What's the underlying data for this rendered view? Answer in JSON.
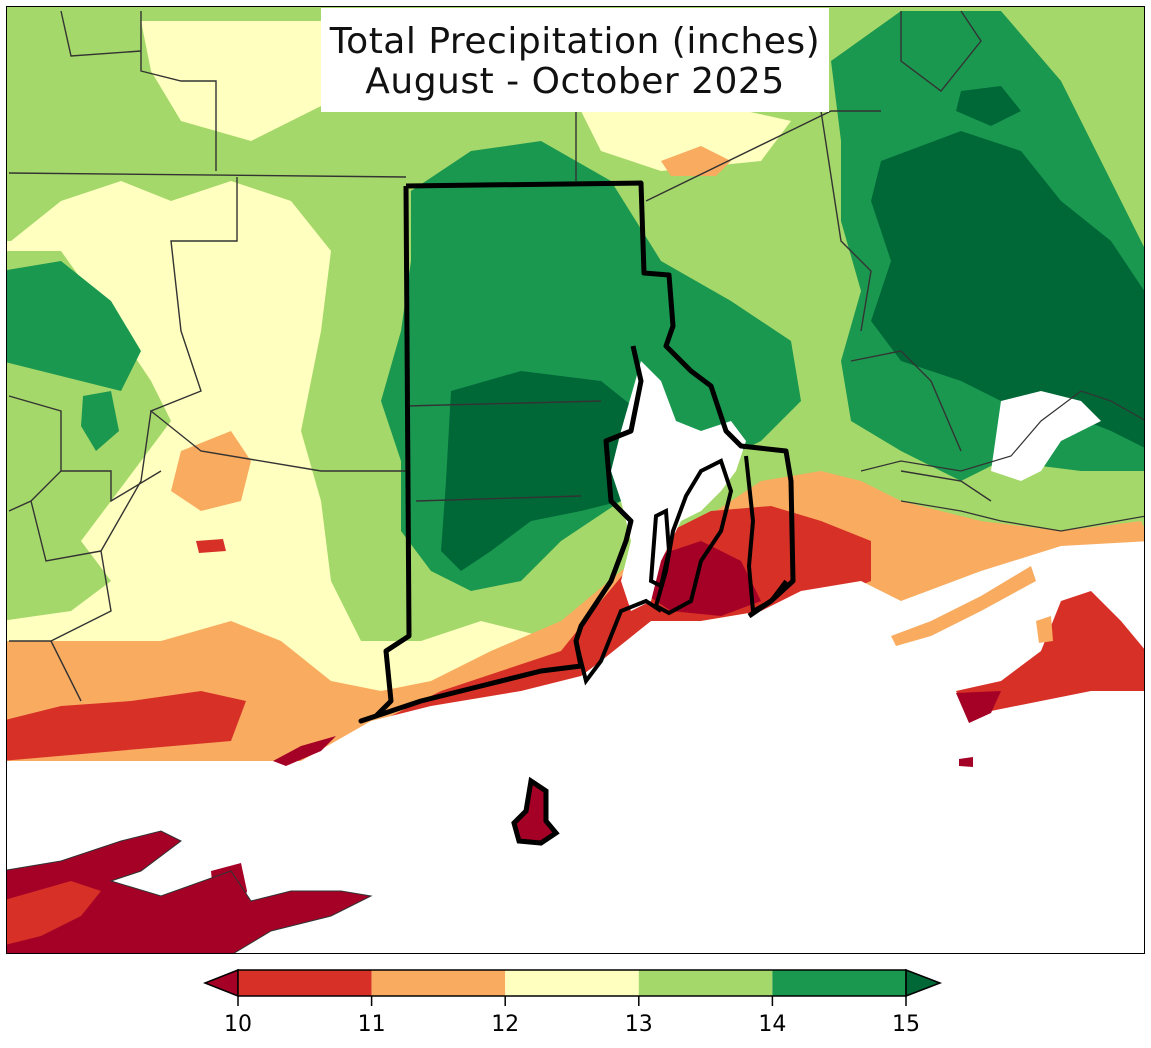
{
  "map": {
    "title_line1": "Total Precipitation (inches)",
    "title_line2": "August - October 2025",
    "region": "Southern New England (Rhode Island, Connecticut, Massachusetts, Long Island)"
  },
  "colorbar": {
    "ticks": [
      "10",
      "11",
      "12",
      "13",
      "14",
      "15"
    ],
    "bins": [
      {
        "range": "<10",
        "color": "#a50026"
      },
      {
        "range": "10-11",
        "color": "#d73027"
      },
      {
        "range": "11-12",
        "color": "#f9ab60"
      },
      {
        "range": "12-13",
        "color": "#ffffbf"
      },
      {
        "range": "13-14",
        "color": "#a5d86a"
      },
      {
        "range": "14-15",
        "color": "#1a9850"
      },
      {
        "range": ">15",
        "color": "#006837"
      }
    ],
    "extend": "both"
  }
}
